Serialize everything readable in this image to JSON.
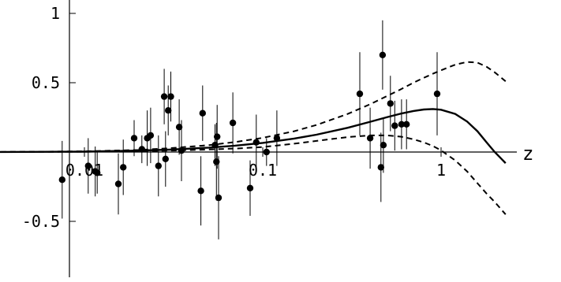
{
  "chart_data": {
    "type": "scatter",
    "title": "",
    "xlabel": "z",
    "ylabel": "",
    "x_scale": "log",
    "xlim": [
      0.003,
      3.0
    ],
    "ylim": [
      -0.9,
      1.08
    ],
    "grid": false,
    "legend": "none",
    "x_ticks": [
      {
        "value": 0.01,
        "label": "0.01"
      },
      {
        "value": 0.1,
        "label": "0.1"
      },
      {
        "value": 1,
        "label": "1"
      }
    ],
    "y_ticks": [
      {
        "value": 1,
        "label": "1"
      },
      {
        "value": 0.5,
        "label": "0.5"
      },
      {
        "value": -0.5,
        "label": "-0.5"
      }
    ],
    "points": [
      {
        "x": 0.0075,
        "y": -0.2,
        "err": 0.28
      },
      {
        "x": 0.0105,
        "y": -0.1,
        "err": 0.2
      },
      {
        "x": 0.0115,
        "y": -0.14,
        "err": 0.18
      },
      {
        "x": 0.0118,
        "y": -0.15,
        "err": 0.15
      },
      {
        "x": 0.0155,
        "y": -0.23,
        "err": 0.22
      },
      {
        "x": 0.0165,
        "y": -0.11,
        "err": 0.2
      },
      {
        "x": 0.019,
        "y": 0.1,
        "err": 0.13
      },
      {
        "x": 0.021,
        "y": 0.02,
        "err": 0.1
      },
      {
        "x": 0.0225,
        "y": 0.1,
        "err": 0.2
      },
      {
        "x": 0.0235,
        "y": 0.12,
        "err": 0.2
      },
      {
        "x": 0.026,
        "y": -0.1,
        "err": 0.22
      },
      {
        "x": 0.028,
        "y": 0.4,
        "err": 0.2
      },
      {
        "x": 0.0285,
        "y": -0.05,
        "err": 0.2
      },
      {
        "x": 0.0295,
        "y": 0.3,
        "err": 0.18
      },
      {
        "x": 0.0305,
        "y": 0.4,
        "err": 0.18
      },
      {
        "x": 0.034,
        "y": 0.18,
        "err": 0.2
      },
      {
        "x": 0.035,
        "y": 0.01,
        "err": 0.22
      },
      {
        "x": 0.045,
        "y": -0.28,
        "err": 0.25
      },
      {
        "x": 0.046,
        "y": 0.28,
        "err": 0.2
      },
      {
        "x": 0.054,
        "y": 0.05,
        "err": 0.15
      },
      {
        "x": 0.055,
        "y": -0.07,
        "err": 0.28
      },
      {
        "x": 0.0555,
        "y": 0.11,
        "err": 0.23
      },
      {
        "x": 0.0565,
        "y": -0.33,
        "err": 0.3
      },
      {
        "x": 0.068,
        "y": 0.21,
        "err": 0.22
      },
      {
        "x": 0.085,
        "y": -0.26,
        "err": 0.2
      },
      {
        "x": 0.092,
        "y": 0.07,
        "err": 0.2
      },
      {
        "x": 0.105,
        "y": 0.0,
        "err": 0.1
      },
      {
        "x": 0.12,
        "y": 0.1,
        "err": 0.2
      },
      {
        "x": 0.35,
        "y": 0.42,
        "err": 0.3
      },
      {
        "x": 0.4,
        "y": 0.1,
        "err": 0.22
      },
      {
        "x": 0.46,
        "y": -0.11,
        "err": 0.25
      },
      {
        "x": 0.47,
        "y": 0.7,
        "err": 0.25
      },
      {
        "x": 0.475,
        "y": 0.05,
        "err": 0.2
      },
      {
        "x": 0.52,
        "y": 0.35,
        "err": 0.2
      },
      {
        "x": 0.55,
        "y": 0.19,
        "err": 0.18
      },
      {
        "x": 0.6,
        "y": 0.2,
        "err": 0.18
      },
      {
        "x": 0.64,
        "y": 0.2,
        "err": 0.18
      },
      {
        "x": 0.95,
        "y": 0.42,
        "err": 0.3
      }
    ],
    "curves": [
      {
        "style": "solid",
        "x": [
          0.003,
          0.005,
          0.01,
          0.02,
          0.03,
          0.05,
          0.07,
          0.1,
          0.15,
          0.2,
          0.3,
          0.4,
          0.5,
          0.6,
          0.7,
          0.8,
          0.9,
          1.0,
          1.2,
          1.4,
          1.6,
          1.8,
          2.0,
          2.3
        ],
        "y": [
          0.0,
          0.001,
          0.003,
          0.01,
          0.017,
          0.032,
          0.046,
          0.066,
          0.097,
          0.125,
          0.175,
          0.218,
          0.252,
          0.278,
          0.296,
          0.307,
          0.31,
          0.305,
          0.275,
          0.22,
          0.15,
          0.07,
          0.0,
          -0.08
        ]
      },
      {
        "style": "dashed",
        "x": [
          0.003,
          0.005,
          0.01,
          0.02,
          0.03,
          0.05,
          0.07,
          0.1,
          0.15,
          0.2,
          0.3,
          0.4,
          0.5,
          0.6,
          0.7,
          0.8,
          0.9,
          1.0,
          1.2,
          1.4,
          1.6,
          1.8,
          2.0,
          2.3
        ],
        "y": [
          0.0,
          0.002,
          0.005,
          0.015,
          0.027,
          0.05,
          0.072,
          0.102,
          0.15,
          0.195,
          0.275,
          0.345,
          0.405,
          0.455,
          0.5,
          0.535,
          0.565,
          0.59,
          0.63,
          0.65,
          0.645,
          0.615,
          0.575,
          0.51
        ]
      },
      {
        "style": "dashed",
        "x": [
          0.003,
          0.005,
          0.01,
          0.02,
          0.03,
          0.05,
          0.07,
          0.1,
          0.15,
          0.2,
          0.3,
          0.4,
          0.5,
          0.6,
          0.7,
          0.8,
          0.9,
          1.0,
          1.2,
          1.4,
          1.6,
          1.8,
          2.0,
          2.3
        ],
        "y": [
          0.0,
          0.001,
          0.002,
          0.006,
          0.01,
          0.018,
          0.025,
          0.036,
          0.06,
          0.08,
          0.108,
          0.12,
          0.12,
          0.11,
          0.092,
          0.07,
          0.043,
          0.012,
          -0.06,
          -0.14,
          -0.225,
          -0.3,
          -0.36,
          -0.45
        ]
      }
    ]
  }
}
